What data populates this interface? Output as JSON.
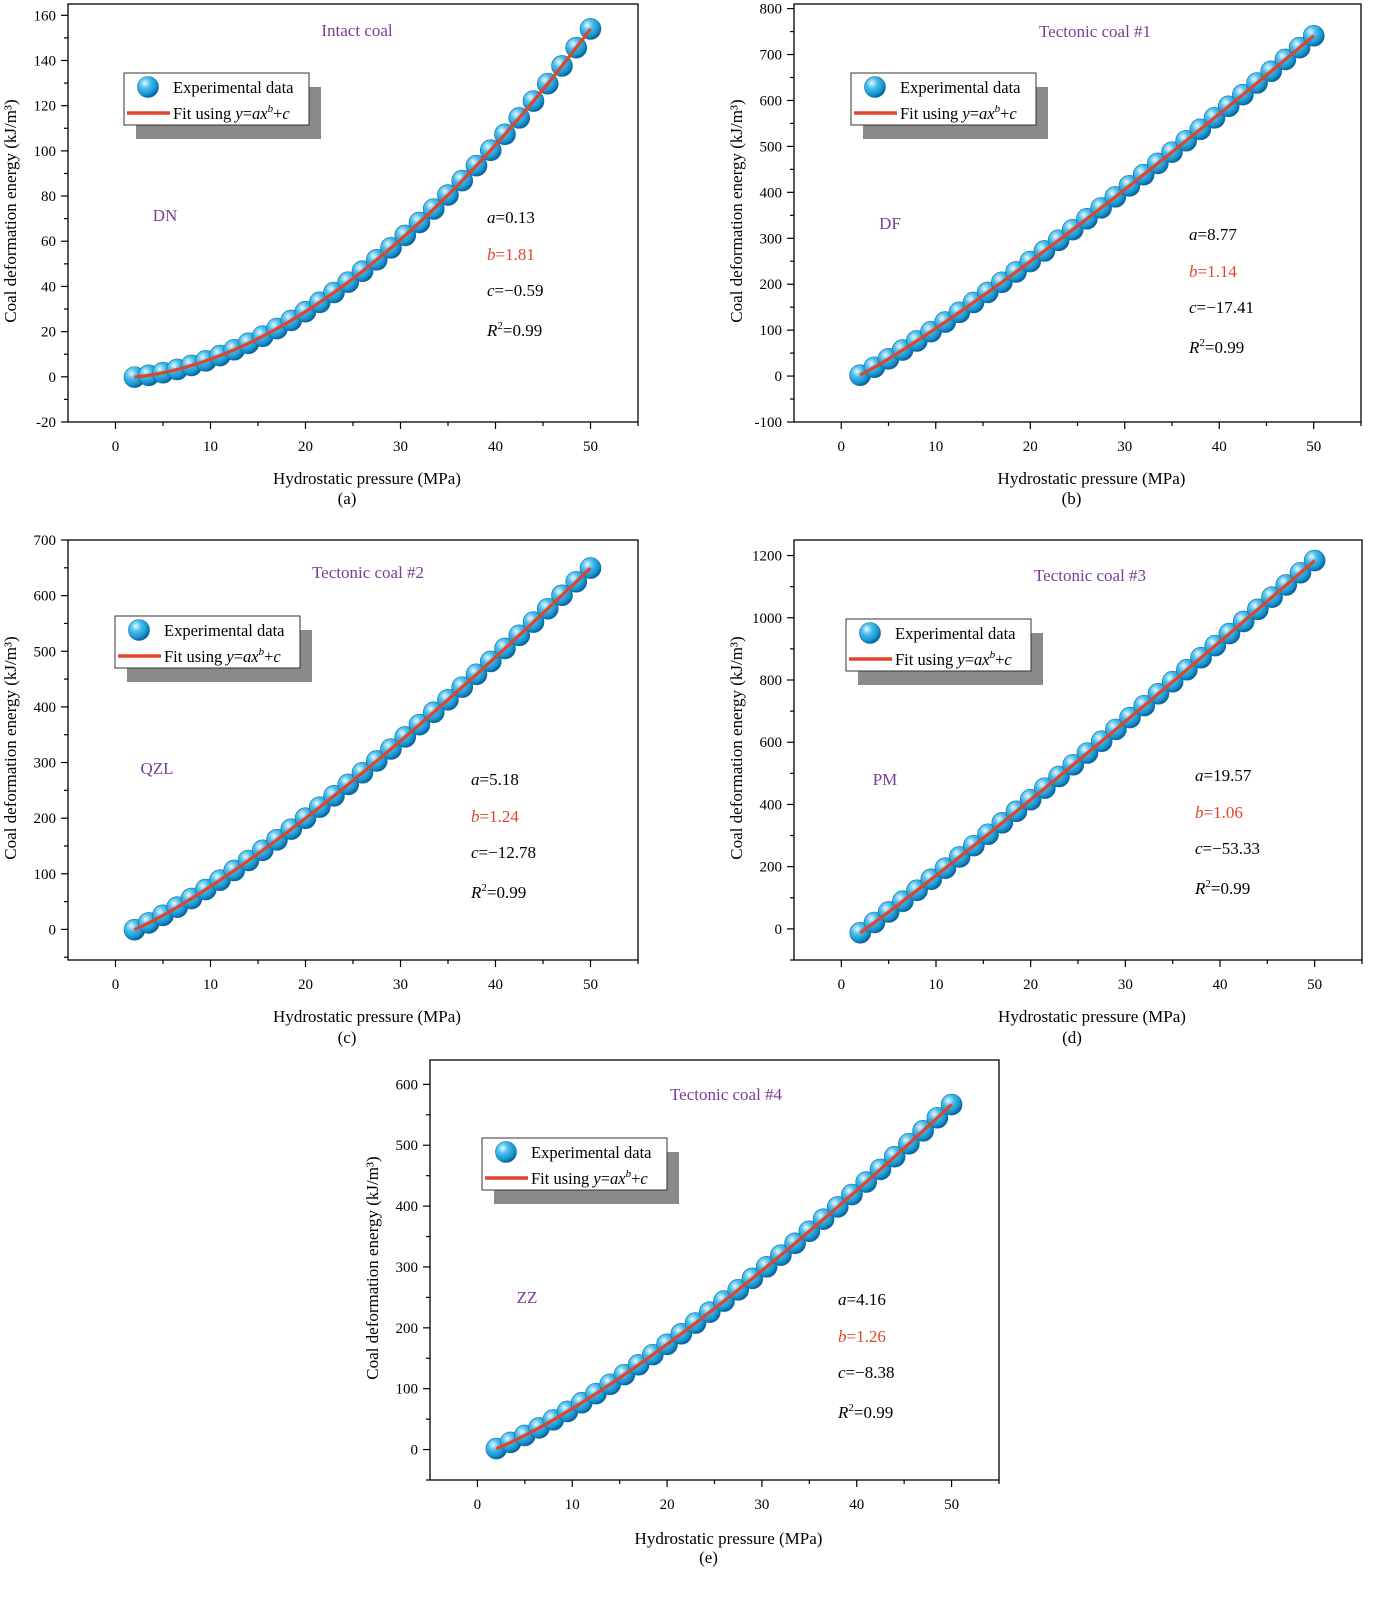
{
  "legend": {
    "experimental_label": "Experimental data",
    "fit_prefix": "Fit using ",
    "fit_formula": "y=ax^b+c"
  },
  "labels": {
    "xlabel": "Hydrostatic pressure (MPa)",
    "ylabel": "Coal deformation energy (kJ/m³)"
  },
  "colors": {
    "marker_fill": "#2aa6d8",
    "marker_light": "#bfeaff",
    "marker_dark": "#0d6fa3",
    "fit_line": "#e0452b",
    "sample_code": "#7a3d95",
    "b_param": "#e0452b",
    "legend_shadow": "#8a8a8a"
  },
  "chart_data": [
    {
      "type": "scatter",
      "panel": "(a)",
      "title": "Intact coal",
      "sample": "DN",
      "params": {
        "a": "0.13",
        "b": "1.81",
        "c": "−0.59",
        "r2": "0.99"
      },
      "fit": {
        "a": 0.13,
        "b": 1.81,
        "c": -0.59
      },
      "x_start": 2,
      "x_step": 1.5,
      "n_points": 33,
      "xlim": [
        -5,
        55
      ],
      "ylim": [
        -20,
        165
      ],
      "xticks": [
        0,
        10,
        20,
        30,
        40,
        50
      ],
      "yticks": [
        -20,
        0,
        20,
        40,
        60,
        80,
        100,
        120,
        140,
        160
      ],
      "xlabel": "Hydrostatic pressure (MPa)",
      "ylabel": "Coal deformation energy (kJ/m³)"
    },
    {
      "type": "scatter",
      "panel": "(b)",
      "title": "Tectonic coal #1",
      "sample": "DF",
      "params": {
        "a": "8.77",
        "b": "1.14",
        "c": "−17.41",
        "r2": "0.99"
      },
      "fit": {
        "a": 8.77,
        "b": 1.14,
        "c": -17.41
      },
      "x_start": 2,
      "x_step": 1.5,
      "n_points": 33,
      "xlim": [
        -5,
        55
      ],
      "ylim": [
        -100,
        810
      ],
      "xticks": [
        0,
        10,
        20,
        30,
        40,
        50
      ],
      "yticks": [
        -100,
        0,
        100,
        200,
        300,
        400,
        500,
        600,
        700,
        800
      ],
      "xlabel": "Hydrostatic pressure (MPa)",
      "ylabel": "Coal deformation energy (kJ/m³)"
    },
    {
      "type": "scatter",
      "panel": "(c)",
      "title": "Tectonic coal #2",
      "sample": "QZL",
      "params": {
        "a": "5.18",
        "b": "1.24",
        "c": "−12.78",
        "r2": "0.99"
      },
      "fit": {
        "a": 5.18,
        "b": 1.24,
        "c": -12.78
      },
      "x_start": 2,
      "x_step": 1.5,
      "n_points": 33,
      "xlim": [
        -5,
        55
      ],
      "ylim": [
        -55,
        700
      ],
      "xticks": [
        0,
        10,
        20,
        30,
        40,
        50
      ],
      "yticks": [
        0,
        100,
        200,
        300,
        400,
        500,
        600,
        700
      ],
      "xlabel": "Hydrostatic pressure (MPa)",
      "ylabel": "Coal deformation energy (kJ/m³)"
    },
    {
      "type": "scatter",
      "panel": "(d)",
      "title": "Tectonic coal #3",
      "sample": "PM",
      "params": {
        "a": "19.57",
        "b": "1.06",
        "c": "−53.33",
        "r2": "0.99"
      },
      "fit": {
        "a": 19.57,
        "b": 1.06,
        "c": -53.33
      },
      "x_start": 2,
      "x_step": 1.5,
      "n_points": 33,
      "xlim": [
        -5,
        55
      ],
      "ylim": [
        -100,
        1250
      ],
      "xticks": [
        0,
        10,
        20,
        30,
        40,
        50
      ],
      "yticks": [
        0,
        200,
        400,
        600,
        800,
        1000,
        1200
      ],
      "xlabel": "Hydrostatic pressure (MPa)",
      "ylabel": "Coal deformation energy (kJ/m³)"
    },
    {
      "type": "scatter",
      "panel": "(e)",
      "title": "Tectonic coal #4",
      "sample": "ZZ",
      "params": {
        "a": "4.16",
        "b": "1.26",
        "c": "−8.38",
        "r2": "0.99"
      },
      "fit": {
        "a": 4.16,
        "b": 1.26,
        "c": -8.38
      },
      "x_start": 2,
      "x_step": 1.5,
      "n_points": 33,
      "xlim": [
        -5,
        55
      ],
      "ylim": [
        -50,
        640
      ],
      "xticks": [
        0,
        10,
        20,
        30,
        40,
        50
      ],
      "yticks": [
        0,
        100,
        200,
        300,
        400,
        500,
        600
      ],
      "xlabel": "Hydrostatic pressure (MPa)",
      "ylabel": "Coal deformation energy (kJ/m³)"
    }
  ]
}
